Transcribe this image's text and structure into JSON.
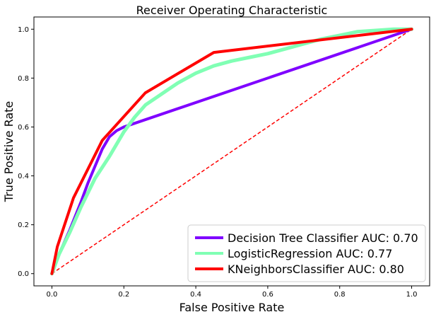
{
  "chart_data": {
    "type": "line",
    "title": "Receiver Operating Characteristic",
    "xlabel": "False Positive Rate",
    "ylabel": "True Positive Rate",
    "xlim": [
      -0.05,
      1.05
    ],
    "ylim": [
      -0.05,
      1.05
    ],
    "xticks": [
      "0.0",
      "0.2",
      "0.4",
      "0.6",
      "0.8",
      "1.0"
    ],
    "yticks": [
      "0.0",
      "0.2",
      "0.4",
      "0.6",
      "0.8",
      "1.0"
    ],
    "grid": false,
    "legend_position": "lower-right",
    "reference_line": {
      "x": [
        0,
        1
      ],
      "y": [
        0,
        1
      ],
      "color": "#ff0000",
      "style": "dashed"
    },
    "series": [
      {
        "name": "Decision Tree Classifier AUC: 0.70",
        "color": "#7f00ff",
        "x": [
          0.0,
          0.02,
          0.05,
          0.08,
          0.1,
          0.12,
          0.14,
          0.16,
          0.18,
          0.2,
          1.0
        ],
        "y": [
          0.0,
          0.08,
          0.18,
          0.29,
          0.37,
          0.44,
          0.51,
          0.56,
          0.585,
          0.6,
          1.0
        ]
      },
      {
        "name": "LogisticRegression AUC: 0.77",
        "color": "#80ffb4",
        "x": [
          0.0,
          0.02,
          0.05,
          0.08,
          0.12,
          0.16,
          0.2,
          0.23,
          0.26,
          0.3,
          0.35,
          0.4,
          0.45,
          0.5,
          0.55,
          0.6,
          0.65,
          0.7,
          0.75,
          0.8,
          0.85,
          0.9,
          0.95,
          1.0
        ],
        "y": [
          0.0,
          0.08,
          0.17,
          0.27,
          0.39,
          0.48,
          0.58,
          0.64,
          0.69,
          0.73,
          0.78,
          0.82,
          0.85,
          0.87,
          0.885,
          0.9,
          0.92,
          0.94,
          0.96,
          0.975,
          0.99,
          0.995,
          1.0,
          1.0
        ]
      },
      {
        "name": "KNeighborsClassifier AUC: 0.80",
        "color": "#ff0000",
        "x": [
          0.0,
          0.015,
          0.06,
          0.14,
          0.26,
          0.45,
          1.0
        ],
        "y": [
          0.0,
          0.11,
          0.31,
          0.545,
          0.74,
          0.905,
          1.0
        ]
      }
    ]
  }
}
